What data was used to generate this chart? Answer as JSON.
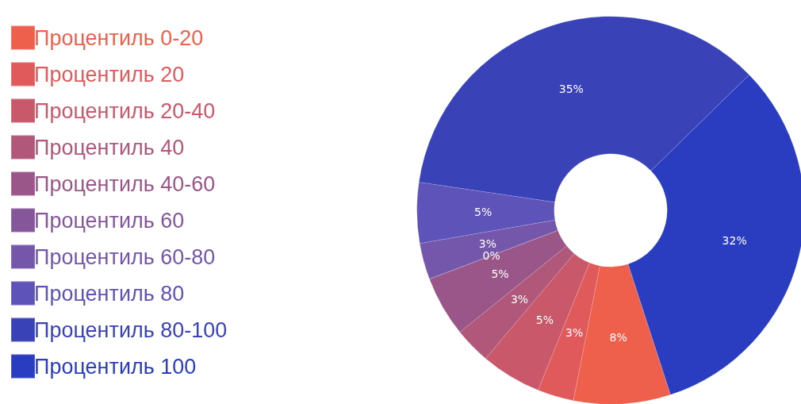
{
  "chart_data": {
    "type": "donut",
    "categories": [
      "Процентиль 0-20",
      "Процентиль 20",
      "Процентиль 20-40",
      "Процентиль 40",
      "Процентиль 40-60",
      "Процентиль 60",
      "Процентиль 60-80",
      "Процентиль 80",
      "Процентиль 80-100",
      "Процентиль 100"
    ],
    "values": [
      8,
      3,
      5,
      3,
      5,
      0,
      3,
      5,
      35,
      32
    ],
    "colors": [
      "#ee5f4c",
      "#e05a5c",
      "#c9586a",
      "#b0577a",
      "#9a5689",
      "#86569a",
      "#7456aa",
      "#5e53b8",
      "#3a42b8",
      "#2a3cc0"
    ],
    "value_labels": [
      "8%",
      "3%",
      "5%",
      "3%",
      "5%",
      "0%",
      "3%",
      "5%",
      "35%",
      "32%"
    ],
    "legend": "left"
  }
}
